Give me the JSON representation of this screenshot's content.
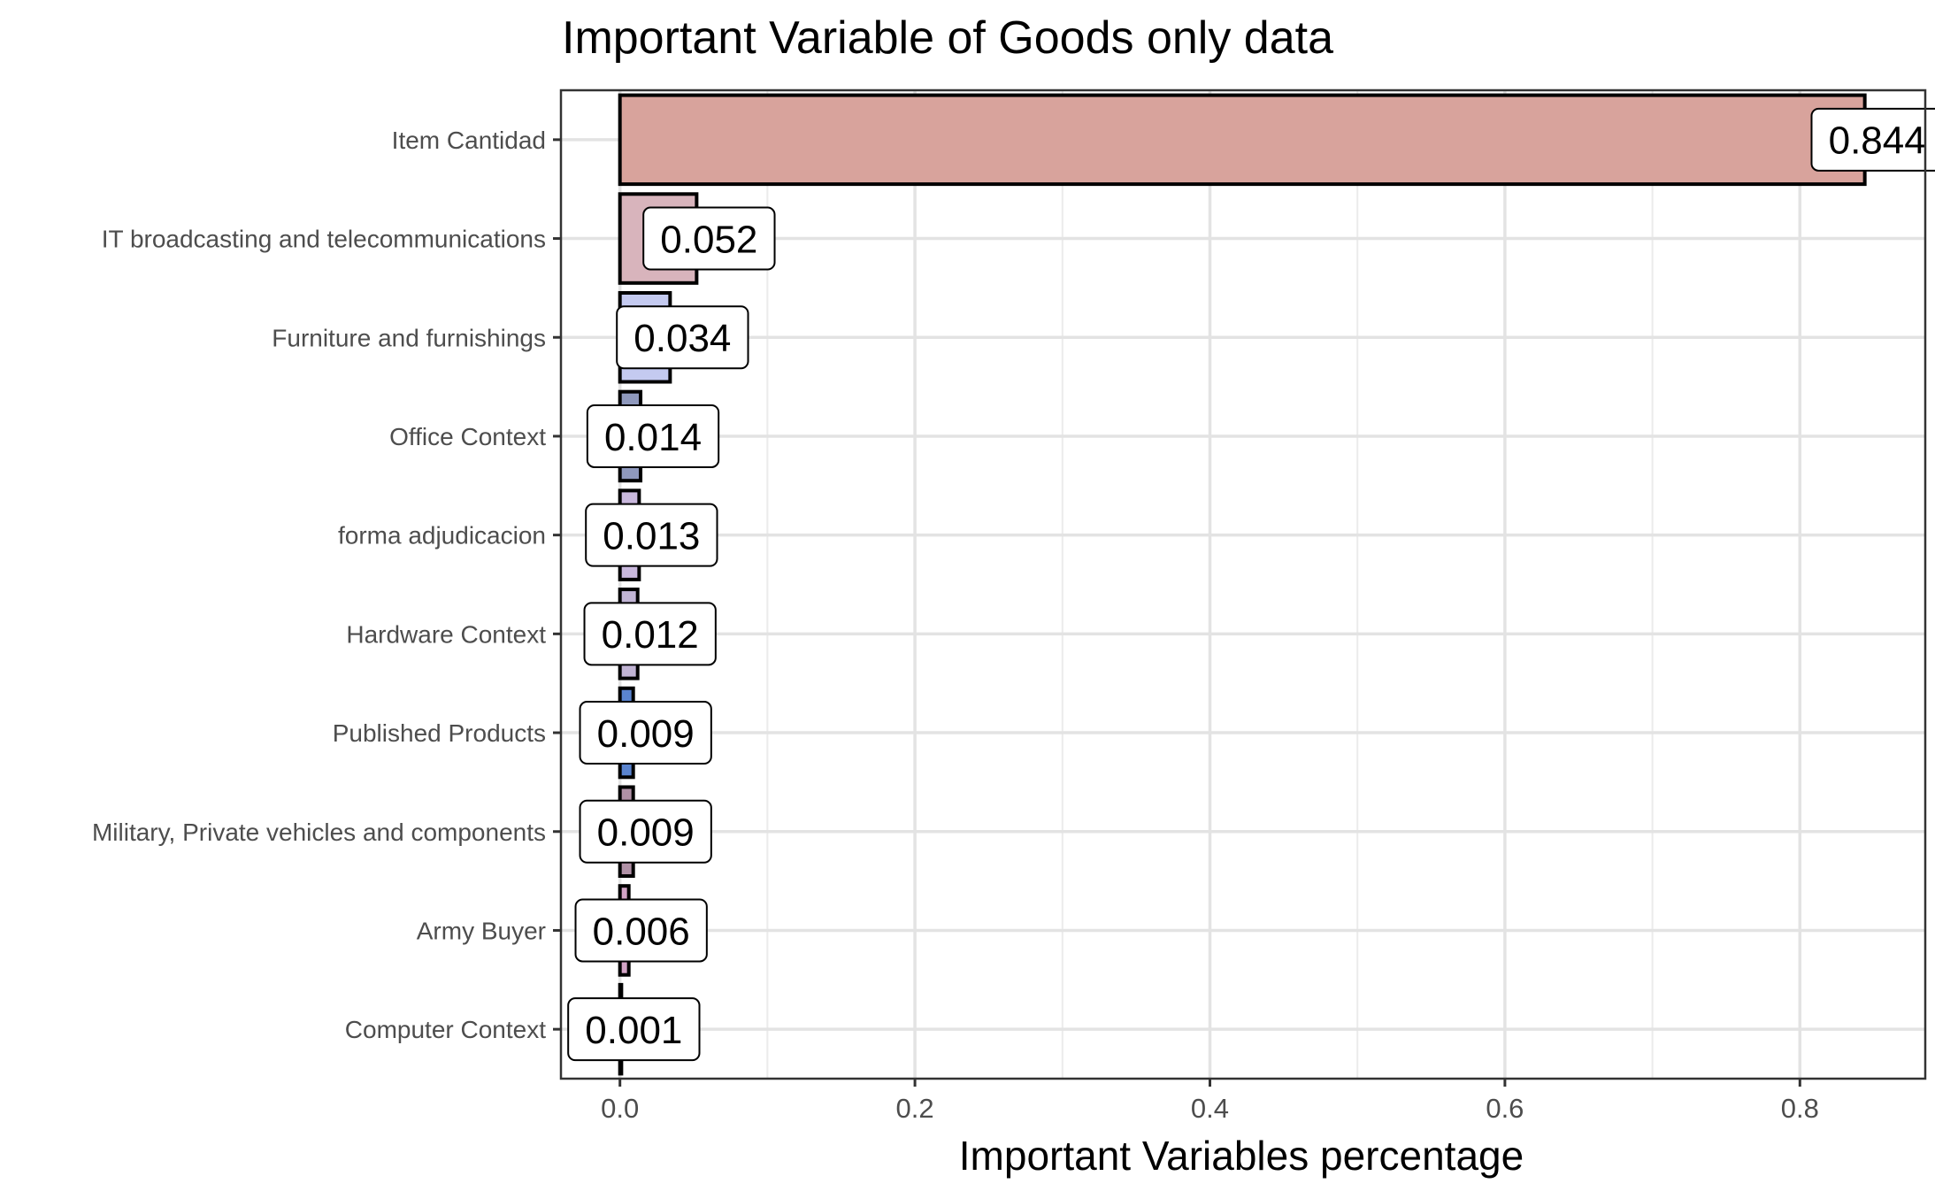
{
  "chart_data": {
    "type": "bar",
    "orientation": "horizontal",
    "title": "Important Variable of Goods only data",
    "xlabel": "Important Variables percentage",
    "ylabel": "",
    "xlim": [
      -0.04,
      0.885
    ],
    "x_ticks": [
      0.0,
      0.2,
      0.4,
      0.6,
      0.8
    ],
    "x_tick_labels": [
      "0.0",
      "0.2",
      "0.4",
      "0.6",
      "0.8"
    ],
    "grid": true,
    "legend": "none",
    "categories": [
      "Item Cantidad",
      "IT broadcasting and telecommunications",
      "Furniture and furnishings",
      "Office Context",
      "forma adjudicacion",
      "Hardware Context",
      "Published Products",
      "Military, Private vehicles and components",
      "Army Buyer",
      "Computer Context"
    ],
    "values": [
      0.844,
      0.052,
      0.034,
      0.014,
      0.013,
      0.012,
      0.009,
      0.009,
      0.006,
      0.001
    ],
    "data_labels": [
      "0.844",
      "0.052",
      "0.034",
      "0.014",
      "0.013",
      "0.012",
      "0.009",
      "0.009",
      "0.006",
      "0.001"
    ],
    "bar_colors": [
      "#d8a39c",
      "#d8b4bc",
      "#c4caf0",
      "#8f99bd",
      "#c9b8dd",
      "#c1b4d4",
      "#5a84cf",
      "#b091a6",
      "#d3a4c6",
      "#b0a0a0"
    ]
  }
}
